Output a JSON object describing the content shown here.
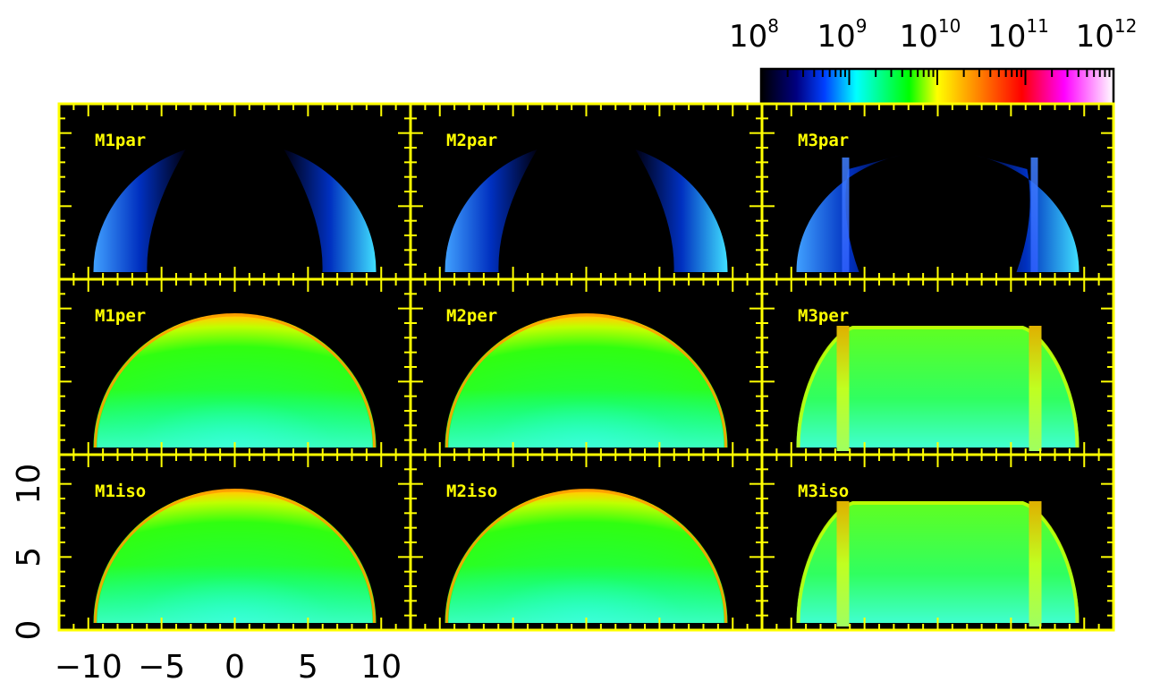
{
  "chart_data": {
    "type": "heatmap",
    "layout": "3x3 panel grid",
    "panel_labels": [
      [
        "M1par",
        "M2par",
        "M3par"
      ],
      [
        "M1per",
        "M2per",
        "M3per"
      ],
      [
        "M1iso",
        "M2iso",
        "M3iso"
      ]
    ],
    "x_ticks": [
      "−10",
      "−5",
      "0",
      "5",
      "10"
    ],
    "y_ticks": [
      "0",
      "5",
      "10"
    ],
    "xlim": [
      -12,
      12
    ],
    "ylim": [
      0,
      12
    ],
    "colorbar": {
      "scale": "log",
      "range": [
        100000000,
        1000000000000
      ],
      "tick_exponents": [
        "8",
        "9",
        "10",
        "11",
        "12"
      ],
      "tick_base": "10",
      "colormap": [
        "#000000",
        "#0000ff",
        "#00ffff",
        "#00ff00",
        "#ffff00",
        "#ff8000",
        "#ff0000",
        "#ff00ff",
        "#ffffff"
      ]
    },
    "frame_color": "#ffff00",
    "label_color": "#ffff00",
    "background": "#000000"
  }
}
